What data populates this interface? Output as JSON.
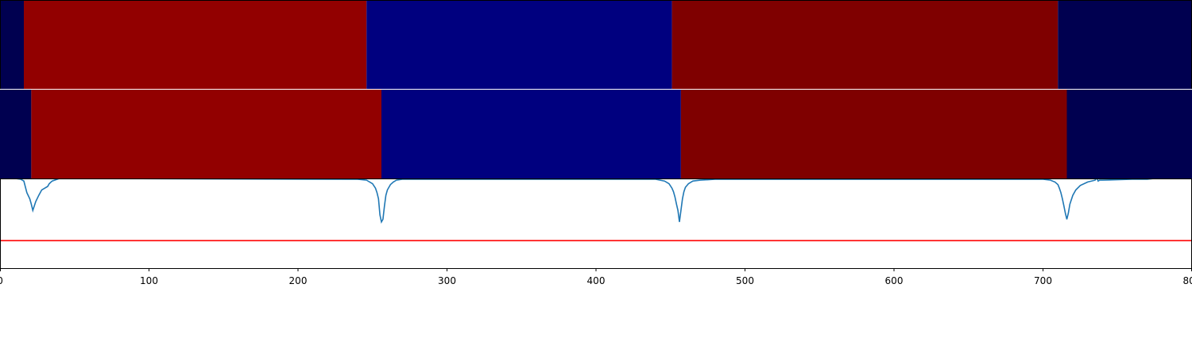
{
  "chart_data": [
    {
      "type": "heatmap",
      "panel": "top-segmentation-strip",
      "xlim": [
        0,
        800
      ],
      "colormap": "seismic",
      "segments": [
        {
          "start": 0,
          "end": 16,
          "color": "#000050"
        },
        {
          "start": 16,
          "end": 246,
          "color": "#920000"
        },
        {
          "start": 246,
          "end": 451,
          "color": "#00007f"
        },
        {
          "start": 451,
          "end": 710,
          "color": "#7f0000"
        },
        {
          "start": 710,
          "end": 800,
          "color": "#000050"
        }
      ]
    },
    {
      "type": "heatmap",
      "panel": "middle-segmentation-strip",
      "xlim": [
        0,
        800
      ],
      "colormap": "seismic",
      "segments": [
        {
          "start": 0,
          "end": 21,
          "color": "#000050"
        },
        {
          "start": 21,
          "end": 256,
          "color": "#920000"
        },
        {
          "start": 256,
          "end": 457,
          "color": "#00007f"
        },
        {
          "start": 457,
          "end": 716,
          "color": "#7f0000"
        },
        {
          "start": 716,
          "end": 800,
          "color": "#000050"
        }
      ]
    },
    {
      "type": "line",
      "panel": "bottom-signal",
      "xlim": [
        0,
        800
      ],
      "ylim": [
        0,
        1
      ],
      "grid": false,
      "xticks": [
        "0",
        "100",
        "200",
        "300",
        "400",
        "500",
        "600",
        "700",
        "800"
      ],
      "xtick_values": [
        0,
        100,
        200,
        300,
        400,
        500,
        600,
        700,
        800
      ],
      "series": [
        {
          "color": "#1f77b4",
          "x": [
            0,
            10,
            14,
            16,
            18,
            20,
            21,
            22,
            24,
            26,
            28,
            30,
            32,
            33,
            35,
            40,
            240,
            246,
            250,
            252,
            253,
            254,
            255,
            256,
            257,
            258,
            259,
            260,
            262,
            264,
            266,
            270,
            280,
            440,
            446,
            449,
            451,
            452,
            453,
            454,
            455,
            456,
            457,
            458,
            459,
            460,
            462,
            465,
            470,
            480,
            700,
            705,
            708,
            710,
            711,
            712,
            713,
            714,
            715,
            716,
            717,
            718,
            720,
            722,
            725,
            730,
            735,
            736,
            737,
            738,
            740,
            760,
            770,
            775,
            780
          ],
          "y": [
            1.02,
            1.01,
            1.0,
            0.98,
            0.85,
            0.78,
            0.72,
            0.65,
            0.75,
            0.82,
            0.88,
            0.9,
            0.92,
            0.95,
            0.98,
            1.01,
            1.0,
            0.99,
            0.95,
            0.9,
            0.85,
            0.78,
            0.6,
            0.52,
            0.55,
            0.7,
            0.82,
            0.88,
            0.94,
            0.97,
            0.99,
            1.0,
            1.0,
            1.0,
            0.98,
            0.95,
            0.9,
            0.86,
            0.8,
            0.72,
            0.65,
            0.52,
            0.65,
            0.78,
            0.86,
            0.91,
            0.95,
            0.98,
            0.99,
            1.0,
            1.0,
            0.99,
            0.97,
            0.94,
            0.9,
            0.85,
            0.78,
            0.7,
            0.62,
            0.55,
            0.62,
            0.72,
            0.82,
            0.88,
            0.93,
            0.97,
            0.99,
            1.02,
            0.98,
            0.99,
            0.99,
            1.0,
            1.0,
            1.01,
            1.03
          ]
        },
        {
          "color": "#ff0000",
          "x": [
            0,
            800
          ],
          "y": [
            0.31,
            0.31
          ]
        }
      ]
    }
  ]
}
